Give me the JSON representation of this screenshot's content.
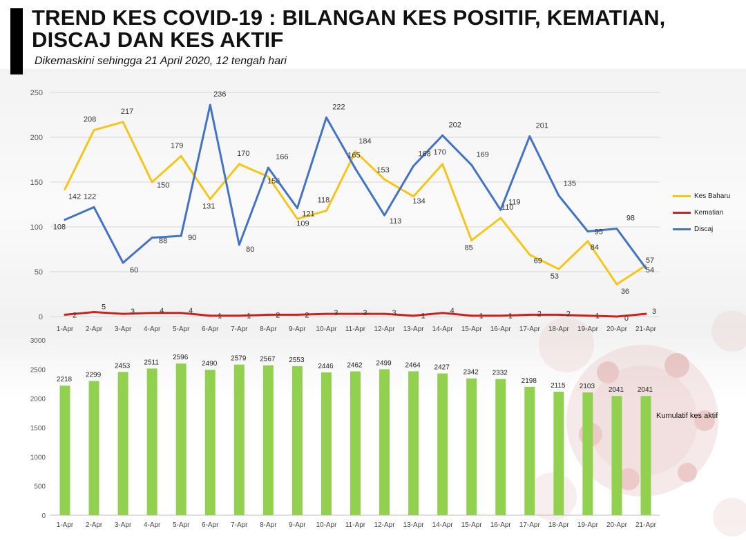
{
  "header": {
    "title_line1": "TREND KES COVID-19 : BILANGAN KES POSITIF, KEMATIAN,",
    "title_line2": "DISCAJ DAN KES AKTIF",
    "subtitle": "Dikemaskini sehingga 21 April 2020, 12 tengah hari"
  },
  "chart_data": [
    {
      "type": "line",
      "x": [
        "1-Apr",
        "2-Apr",
        "3-Apr",
        "4-Apr",
        "5-Apr",
        "6-Apr",
        "7-Apr",
        "8-Apr",
        "9-Apr",
        "10-Apr",
        "11-Apr",
        "12-Apr",
        "13-Apr",
        "14-Apr",
        "15-Apr",
        "16-Apr",
        "17-Apr",
        "18-Apr",
        "19-Apr",
        "20-Apr",
        "21-Apr"
      ],
      "ylim": [
        0,
        250
      ],
      "yticks": [
        0,
        50,
        100,
        150,
        200,
        250
      ],
      "grid": true,
      "legend": "right",
      "series": [
        {
          "name": "Kes Baharu",
          "color": "#F5C518",
          "values": [
            142,
            208,
            217,
            150,
            179,
            131,
            170,
            156,
            109,
            118,
            184,
            153,
            134,
            170,
            85,
            110,
            69,
            53,
            84,
            36,
            57
          ]
        },
        {
          "name": "Kematian",
          "color": "#D0201A",
          "values": [
            2,
            5,
            3,
            4,
            4,
            1,
            1,
            2,
            2,
            3,
            3,
            3,
            1,
            4,
            1,
            1,
            2,
            2,
            1,
            0,
            3
          ]
        },
        {
          "name": "Discaj",
          "color": "#4472C4",
          "values": [
            108,
            122,
            60,
            88,
            90,
            236,
            80,
            166,
            121,
            222,
            165,
            113,
            168,
            202,
            169,
            119,
            201,
            135,
            95,
            98,
            54
          ]
        }
      ]
    },
    {
      "type": "bar",
      "categories": [
        "1-Apr",
        "2-Apr",
        "3-Apr",
        "4-Apr",
        "5-Apr",
        "6-Apr",
        "7-Apr",
        "8-Apr",
        "9-Apr",
        "10-Apr",
        "11-Apr",
        "12-Apr",
        "13-Apr",
        "14-Apr",
        "15-Apr",
        "16-Apr",
        "17-Apr",
        "18-Apr",
        "19-Apr",
        "20-Apr",
        "21-Apr"
      ],
      "ylim": [
        0,
        3000
      ],
      "yticks": [
        0,
        500,
        1000,
        1500,
        2000,
        2500,
        3000
      ],
      "color": "#92D050",
      "series": [
        {
          "name": "Kumulatif kes aktif",
          "values": [
            2218,
            2299,
            2453,
            2511,
            2596,
            2490,
            2579,
            2567,
            2553,
            2446,
            2462,
            2499,
            2464,
            2427,
            2342,
            2332,
            2198,
            2115,
            2103,
            2041,
            2041
          ]
        }
      ]
    }
  ]
}
